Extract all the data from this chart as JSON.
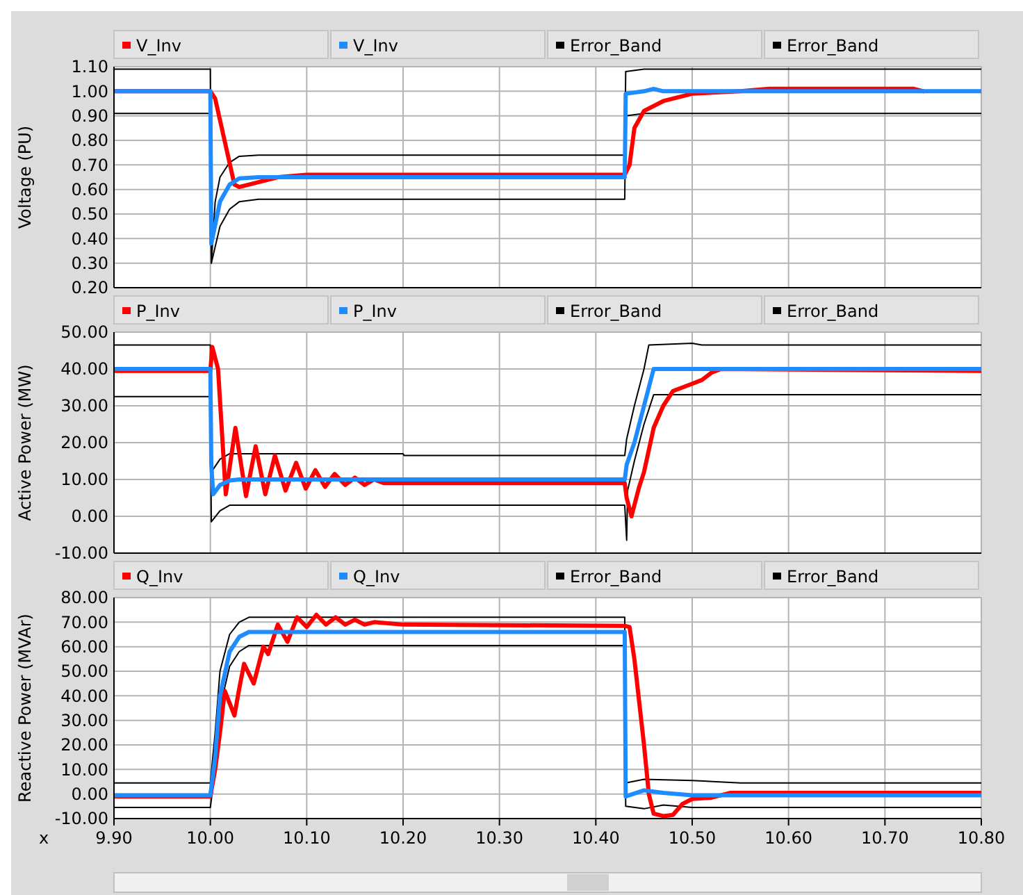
{
  "chart_data": [
    {
      "type": "line",
      "ylabel": "Voltage (PU)",
      "grid": true,
      "legend": "top",
      "tick_labels": "y",
      "xlim": [
        9.9,
        10.8
      ],
      "xticks": [
        9.9,
        10.0,
        10.1,
        10.2,
        10.3,
        10.4,
        10.5,
        10.6,
        10.7,
        10.8
      ],
      "ylim": [
        0.2,
        1.1
      ],
      "yticks": [
        {
          "value": 0.2,
          "label": "0.20"
        },
        {
          "value": 0.3,
          "label": "0.30"
        },
        {
          "value": 0.4,
          "label": "0.40"
        },
        {
          "value": 0.5,
          "label": "0.50"
        },
        {
          "value": 0.6,
          "label": "0.60"
        },
        {
          "value": 0.7,
          "label": "0.70"
        },
        {
          "value": 0.8,
          "label": "0.80"
        },
        {
          "value": 0.9,
          "label": "0.90"
        },
        {
          "value": 1.0,
          "label": "1.00"
        },
        {
          "value": 1.1,
          "label": "1.10"
        }
      ],
      "series": [
        {
          "name": "V_Inv",
          "color": "#ff0000",
          "x": [
            9.9,
            10.0,
            10.005,
            10.025,
            10.03,
            10.05,
            10.07,
            10.1,
            10.43,
            10.435,
            10.44,
            10.45,
            10.47,
            10.5,
            10.55,
            10.58,
            10.73,
            10.74
          ],
          "values": [
            1.0,
            1.0,
            0.97,
            0.62,
            0.61,
            0.63,
            0.65,
            0.66,
            0.66,
            0.7,
            0.85,
            0.92,
            0.96,
            0.99,
            1.0,
            1.01,
            1.01,
            1.0
          ]
        },
        {
          "name": "V_Inv",
          "color": "#1e8cff",
          "x": [
            9.9,
            10.0,
            10.001,
            10.01,
            10.02,
            10.03,
            10.05,
            10.43,
            10.431,
            10.45,
            10.46,
            10.47,
            10.8
          ],
          "values": [
            1.0,
            1.0,
            0.38,
            0.55,
            0.62,
            0.645,
            0.65,
            0.65,
            0.99,
            1.0,
            1.01,
            1.0,
            1.0
          ]
        },
        {
          "name": "Error_Band",
          "color": "#000000",
          "x": [
            9.9,
            10.0,
            10.001,
            10.005,
            10.01,
            10.02,
            10.03,
            10.05,
            10.43,
            10.431,
            10.45,
            10.8
          ],
          "values": [
            1.09,
            1.09,
            0.3,
            0.55,
            0.65,
            0.71,
            0.735,
            0.74,
            0.74,
            1.08,
            1.09,
            1.09
          ]
        },
        {
          "name": "Error_Band",
          "color": "#000000",
          "x": [
            9.9,
            10.0,
            10.001,
            10.01,
            10.02,
            10.03,
            10.05,
            10.43,
            10.431,
            10.45,
            10.8
          ],
          "values": [
            0.91,
            0.91,
            0.3,
            0.45,
            0.52,
            0.55,
            0.56,
            0.56,
            0.9,
            0.91,
            0.91
          ]
        }
      ]
    },
    {
      "type": "line",
      "ylabel": "Active Power (MW)",
      "grid": true,
      "legend": "top",
      "tick_labels": "y",
      "xlim": [
        9.9,
        10.8
      ],
      "xticks": [
        9.9,
        10.0,
        10.1,
        10.2,
        10.3,
        10.4,
        10.5,
        10.6,
        10.7,
        10.8
      ],
      "ylim": [
        -10,
        50
      ],
      "yticks": [
        {
          "value": -10,
          "label": "-10.00"
        },
        {
          "value": 0,
          "label": "0.00"
        },
        {
          "value": 10,
          "label": "10.00"
        },
        {
          "value": 20,
          "label": "20.00"
        },
        {
          "value": 30,
          "label": "30.00"
        },
        {
          "value": 40,
          "label": "40.00"
        },
        {
          "value": 50,
          "label": "50.00"
        }
      ],
      "series": [
        {
          "name": "P_Inv",
          "color": "#ff0000",
          "x": [
            9.9,
            10.0,
            10.002,
            10.008,
            10.016,
            10.026,
            10.037,
            10.047,
            10.057,
            10.067,
            10.078,
            10.089,
            10.099,
            10.109,
            10.119,
            10.129,
            10.14,
            10.15,
            10.16,
            10.17,
            10.18,
            10.2,
            10.43,
            10.432,
            10.437,
            10.44,
            10.445,
            10.45,
            10.46,
            10.47,
            10.48,
            10.49,
            10.5,
            10.51,
            10.52,
            10.53,
            10.8
          ],
          "values": [
            39.5,
            39.5,
            46,
            40,
            6,
            24,
            5.5,
            19,
            6,
            16.5,
            7,
            14.5,
            7.5,
            12.5,
            8,
            11.5,
            8.5,
            10.5,
            8.5,
            10,
            9,
            9,
            9,
            5,
            0,
            3,
            8,
            12,
            24,
            30,
            34,
            35,
            36,
            37,
            39,
            40,
            39.5
          ]
        },
        {
          "name": "P_Inv",
          "color": "#1e8cff",
          "x": [
            9.9,
            10.0,
            10.001,
            10.003,
            10.01,
            10.02,
            10.03,
            10.43,
            10.432,
            10.44,
            10.45,
            10.46,
            10.8
          ],
          "values": [
            40,
            40,
            14,
            6,
            8.5,
            9.7,
            10,
            10,
            14,
            20,
            30,
            40,
            40
          ]
        },
        {
          "name": "Error_Band",
          "color": "#000000",
          "x": [
            9.9,
            10.0,
            10.001,
            10.01,
            10.02,
            10.2,
            10.201,
            10.43,
            10.432,
            10.44,
            10.45,
            10.455,
            10.5,
            10.51,
            10.8
          ],
          "values": [
            46.5,
            46.5,
            12,
            15.5,
            17,
            17,
            16.5,
            16.5,
            21,
            30,
            40,
            46.5,
            47,
            46.5,
            46.5
          ]
        },
        {
          "name": "Error_Band",
          "color": "#000000",
          "x": [
            9.9,
            10.0,
            10.001,
            10.01,
            10.02,
            10.43,
            10.432,
            10.433,
            10.44,
            10.45,
            10.46,
            10.8
          ],
          "values": [
            32.5,
            32.5,
            -1.5,
            1.5,
            3,
            3,
            -6.5,
            7,
            15,
            25,
            33,
            33
          ]
        }
      ]
    },
    {
      "type": "line",
      "ylabel": "Reactive Power (MVAr)",
      "xlabel": "x",
      "grid": true,
      "legend": "top",
      "xlim": [
        9.9,
        10.8
      ],
      "xticks": [
        {
          "value": 9.9,
          "label": "9.90"
        },
        {
          "value": 10.0,
          "label": "10.00"
        },
        {
          "value": 10.1,
          "label": "10.10"
        },
        {
          "value": 10.2,
          "label": "10.20"
        },
        {
          "value": 10.3,
          "label": "10.30"
        },
        {
          "value": 10.4,
          "label": "10.40"
        },
        {
          "value": 10.5,
          "label": "10.50"
        },
        {
          "value": 10.6,
          "label": "10.60"
        },
        {
          "value": 10.7,
          "label": "10.70"
        },
        {
          "value": 10.8,
          "label": "10.80"
        }
      ],
      "ylim": [
        -10,
        80
      ],
      "yticks": [
        {
          "value": -10,
          "label": "-10.00"
        },
        {
          "value": 0,
          "label": "0.00"
        },
        {
          "value": 10,
          "label": "10.00"
        },
        {
          "value": 20,
          "label": "20.00"
        },
        {
          "value": 30,
          "label": "30.00"
        },
        {
          "value": 40,
          "label": "40.00"
        },
        {
          "value": 50,
          "label": "50.00"
        },
        {
          "value": 60,
          "label": "60.00"
        },
        {
          "value": 70,
          "label": "70.00"
        },
        {
          "value": 80,
          "label": "80.00"
        }
      ],
      "series": [
        {
          "name": "Q_Inv",
          "color": "#ff0000",
          "x": [
            9.9,
            10.0,
            10.005,
            10.01,
            10.015,
            10.02,
            10.025,
            10.03,
            10.035,
            10.045,
            10.055,
            10.06,
            10.07,
            10.08,
            10.09,
            10.1,
            10.11,
            10.12,
            10.13,
            10.14,
            10.15,
            10.16,
            10.17,
            10.2,
            10.43,
            10.435,
            10.44,
            10.45,
            10.455,
            10.46,
            10.47,
            10.48,
            10.49,
            10.5,
            10.52,
            10.54,
            10.8
          ],
          "values": [
            -1,
            -1,
            10,
            25,
            42,
            37,
            32,
            43,
            53,
            45,
            60,
            57,
            69,
            62,
            72,
            68,
            73,
            69,
            72,
            69,
            71,
            69,
            70,
            69,
            68.5,
            68,
            55,
            20,
            0,
            -8,
            -9,
            -8.5,
            -4,
            -2,
            -1.5,
            0.5,
            0.5
          ]
        },
        {
          "name": "Q_Inv",
          "color": "#1e8cff",
          "x": [
            9.9,
            10.0,
            10.005,
            10.01,
            10.02,
            10.03,
            10.04,
            10.43,
            10.431,
            10.45,
            10.47,
            10.5,
            10.8
          ],
          "values": [
            -0.5,
            -0.5,
            15,
            40,
            58,
            64,
            66,
            66,
            -1,
            1.5,
            0.5,
            -0.5,
            -0.5
          ]
        },
        {
          "name": "Error_Band",
          "color": "#000000",
          "x": [
            9.9,
            10.0,
            10.005,
            10.01,
            10.02,
            10.03,
            10.04,
            10.43,
            10.431,
            10.45,
            10.5,
            10.55,
            10.8
          ],
          "values": [
            4.5,
            4.5,
            25,
            50,
            65,
            70,
            72,
            72,
            4.5,
            6,
            5.5,
            4.5,
            4.5
          ]
        },
        {
          "name": "Error_Band",
          "color": "#000000",
          "x": [
            9.9,
            10.0,
            10.005,
            10.01,
            10.02,
            10.03,
            10.04,
            10.43,
            10.431,
            10.45,
            10.47,
            10.5,
            10.8
          ],
          "values": [
            -5.5,
            -5.5,
            10,
            35,
            52,
            58,
            60.5,
            60.5,
            -5,
            -6,
            -4.5,
            -5.5,
            -5.5
          ]
        }
      ]
    }
  ]
}
